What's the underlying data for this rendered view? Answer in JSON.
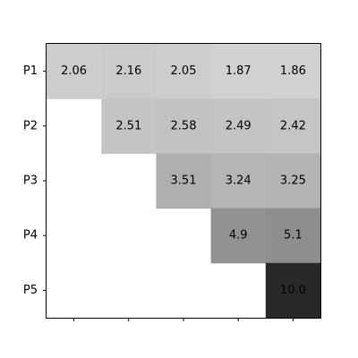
{
  "chart_data": {
    "type": "heatmap",
    "rows": [
      "P1",
      "P2",
      "P3",
      "P4",
      "P5"
    ],
    "columns": [
      "",
      "",
      "",
      "",
      ""
    ],
    "values": [
      [
        2.06,
        2.16,
        2.05,
        1.87,
        1.86
      ],
      [
        null,
        2.51,
        2.58,
        2.49,
        2.42
      ],
      [
        null,
        null,
        3.51,
        3.24,
        3.25
      ],
      [
        null,
        null,
        null,
        4.9,
        5.1
      ],
      [
        null,
        null,
        null,
        null,
        10.0
      ]
    ],
    "value_labels": [
      [
        "2.06",
        "2.16",
        "2.05",
        "1.87",
        "1.86"
      ],
      [
        "",
        "2.51",
        "2.58",
        "2.49",
        "2.42"
      ],
      [
        "",
        "",
        "3.51",
        "3.24",
        "3.25"
      ],
      [
        "",
        "",
        "",
        "4.9",
        "5.1"
      ],
      [
        "",
        "",
        "",
        "",
        "10.0"
      ]
    ],
    "colormap": "greys",
    "vmin": 0,
    "vmax": 12,
    "colors": {
      "light": "#ffffff",
      "dark": "#000000",
      "text": "#000000"
    },
    "title": "",
    "xlabel": "",
    "ylabel": "",
    "grid": false,
    "legend": "none"
  }
}
